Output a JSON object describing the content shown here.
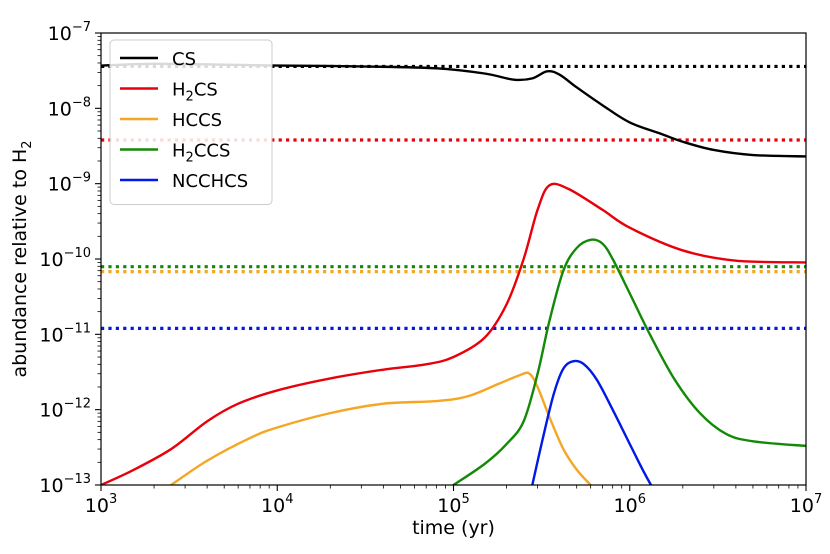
{
  "chart_data": {
    "type": "line",
    "title": "",
    "xlabel": "time (yr)",
    "ylabel": "abundance relative to H",
    "ylabel_sub": "2",
    "xscale": "log",
    "yscale": "log",
    "xlim": [
      1000,
      10000000
    ],
    "ylim": [
      1e-13,
      1e-07
    ],
    "grid": false,
    "legend_position": "top-left",
    "x_ticks": [
      {
        "value": 1000,
        "base": "10",
        "exp": "3"
      },
      {
        "value": 10000,
        "base": "10",
        "exp": "4"
      },
      {
        "value": 100000,
        "base": "10",
        "exp": "5"
      },
      {
        "value": 1000000,
        "base": "10",
        "exp": "6"
      },
      {
        "value": 10000000,
        "base": "10",
        "exp": "7"
      }
    ],
    "y_ticks": [
      {
        "value": 1e-13,
        "base": "10",
        "exp": "−13"
      },
      {
        "value": 1e-12,
        "base": "10",
        "exp": "−12"
      },
      {
        "value": 1e-11,
        "base": "10",
        "exp": "−11"
      },
      {
        "value": 1e-10,
        "base": "10",
        "exp": "−10"
      },
      {
        "value": 1e-09,
        "base": "10",
        "exp": "−9"
      },
      {
        "value": 1e-08,
        "base": "10",
        "exp": "−8"
      },
      {
        "value": 1e-07,
        "base": "10",
        "exp": "−7"
      }
    ],
    "series": [
      {
        "name": "CS",
        "label_main": "CS",
        "label_sub": "",
        "label_tail": "",
        "color": "#000000",
        "points": [
          [
            1000,
            3.7e-08
          ],
          [
            2000,
            3.9e-08
          ],
          [
            5000,
            3.8e-08
          ],
          [
            10000,
            3.7e-08
          ],
          [
            30000,
            3.6e-08
          ],
          [
            80000,
            3.4e-08
          ],
          [
            150000,
            2.9e-08
          ],
          [
            220000,
            2.4e-08
          ],
          [
            280000,
            2.5e-08
          ],
          [
            340000,
            3.1e-08
          ],
          [
            400000,
            2.8e-08
          ],
          [
            500000,
            1.9e-08
          ],
          [
            700000,
            1.1e-08
          ],
          [
            1000000,
            6.5e-09
          ],
          [
            1500000,
            4.6e-09
          ],
          [
            2000000,
            3.6e-09
          ],
          [
            3000000,
            2.8e-09
          ],
          [
            5000000,
            2.4e-09
          ],
          [
            10000000,
            2.3e-09
          ]
        ],
        "observed": 3.6e-08
      },
      {
        "name": "H2CS",
        "label_main": "H",
        "label_sub": "2",
        "label_tail": "CS",
        "color": "#e8000b",
        "points": [
          [
            1000,
            1e-13
          ],
          [
            1500,
            1.55e-13
          ],
          [
            2500,
            3e-13
          ],
          [
            4000,
            7e-13
          ],
          [
            6000,
            1.2e-12
          ],
          [
            10000,
            1.8e-12
          ],
          [
            20000,
            2.6e-12
          ],
          [
            40000,
            3.4e-12
          ],
          [
            70000,
            4e-12
          ],
          [
            100000,
            5e-12
          ],
          [
            150000,
            9e-12
          ],
          [
            200000,
            2.5e-11
          ],
          [
            250000,
            1e-10
          ],
          [
            300000,
            4.5e-10
          ],
          [
            350000,
            9.5e-10
          ],
          [
            450000,
            8.5e-10
          ],
          [
            700000,
            4.5e-10
          ],
          [
            1000000,
            2.6e-10
          ],
          [
            2000000,
            1.3e-10
          ],
          [
            4000000,
            9.5e-11
          ],
          [
            10000000,
            9e-11
          ]
        ],
        "observed": 3.8e-09
      },
      {
        "name": "HCCS",
        "label_main": "HCCS",
        "label_sub": "",
        "label_tail": "",
        "color": "#f5a623",
        "points": [
          [
            2500,
            1e-13
          ],
          [
            4000,
            2.1e-13
          ],
          [
            7000,
            4.2e-13
          ],
          [
            10000,
            5.8e-13
          ],
          [
            20000,
            9e-13
          ],
          [
            40000,
            1.2e-12
          ],
          [
            80000,
            1.3e-12
          ],
          [
            120000,
            1.5e-12
          ],
          [
            180000,
            2.2e-12
          ],
          [
            240000,
            2.9e-12
          ],
          [
            270000,
            3e-12
          ],
          [
            300000,
            2e-12
          ],
          [
            350000,
            8e-13
          ],
          [
            420000,
            3e-13
          ],
          [
            500000,
            1.6e-13
          ],
          [
            600000,
            1e-13
          ]
        ],
        "observed": 6.8e-11
      },
      {
        "name": "H2CCS",
        "label_main": "H",
        "label_sub": "2",
        "label_tail": "CCS",
        "color": "#138a07",
        "points": [
          [
            100000,
            1e-13
          ],
          [
            150000,
            1.9e-13
          ],
          [
            200000,
            3.5e-13
          ],
          [
            250000,
            7e-13
          ],
          [
            300000,
            3e-12
          ],
          [
            350000,
            1.5e-11
          ],
          [
            420000,
            7e-11
          ],
          [
            500000,
            1.4e-10
          ],
          [
            600000,
            1.8e-10
          ],
          [
            700000,
            1.6e-10
          ],
          [
            800000,
            1e-10
          ],
          [
            1000000,
            3.5e-11
          ],
          [
            1300000,
            1e-11
          ],
          [
            1800000,
            2.5e-12
          ],
          [
            2500000,
            9e-13
          ],
          [
            3500000,
            4.8e-13
          ],
          [
            5000000,
            3.8e-13
          ],
          [
            10000000,
            3.3e-13
          ]
        ],
        "observed": 7.9e-11
      },
      {
        "name": "NCCHCS",
        "label_main": "NCCHCS",
        "label_sub": "",
        "label_tail": "",
        "color": "#0019e6",
        "points": [
          [
            280000,
            1e-13
          ],
          [
            320000,
            4e-13
          ],
          [
            370000,
            1.6e-12
          ],
          [
            420000,
            3.5e-12
          ],
          [
            480000,
            4.4e-12
          ],
          [
            550000,
            4e-12
          ],
          [
            650000,
            2.5e-12
          ],
          [
            800000,
            1e-12
          ],
          [
            1000000,
            3.5e-13
          ],
          [
            1200000,
            1.5e-13
          ],
          [
            1320000,
            1e-13
          ]
        ],
        "observed": 1.2e-11
      }
    ]
  }
}
